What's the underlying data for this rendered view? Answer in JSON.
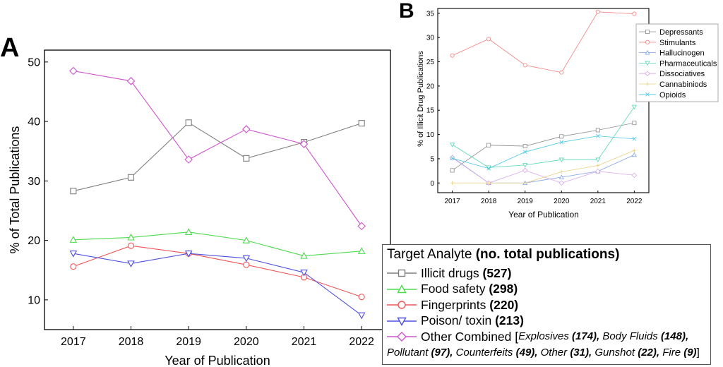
{
  "chart_data": [
    {
      "panel_label": "A",
      "type": "line",
      "xlabel": "Year of Publication",
      "ylabel": "% of Total Publications",
      "x": [
        2017,
        2018,
        2019,
        2020,
        2021,
        2022
      ],
      "xlim": [
        2016.5,
        2022.5
      ],
      "ylim": [
        5,
        52
      ],
      "yticks": [
        10,
        20,
        30,
        40,
        50
      ],
      "series": [
        {
          "name": "Illicit drugs",
          "count": "(527)",
          "color": "#7f7f7f",
          "marker": "square",
          "values": [
            28.3,
            30.6,
            39.8,
            33.8,
            36.5,
            39.7
          ]
        },
        {
          "name": "Food safety",
          "count": "(298)",
          "color": "#4ddb4d",
          "marker": "triangle-up",
          "values": [
            20.1,
            20.5,
            21.4,
            20.0,
            17.4,
            18.2
          ]
        },
        {
          "name": "Fingerprints",
          "count": "(220)",
          "color": "#f05555",
          "marker": "circle",
          "values": [
            15.6,
            19.1,
            17.8,
            15.9,
            13.8,
            10.5
          ]
        },
        {
          "name": "Poison/ toxin",
          "count": "(213)",
          "color": "#5050e0",
          "marker": "triangle-down",
          "values": [
            17.8,
            16.1,
            17.8,
            17.0,
            14.6,
            7.4
          ]
        },
        {
          "name": "Other Combined",
          "count": "",
          "color": "#cc55cc",
          "marker": "diamond",
          "values": [
            48.5,
            46.8,
            33.6,
            38.7,
            36.2,
            22.4
          ]
        }
      ],
      "legend": {
        "title": "Target Analyte",
        "title_bold": "(no. total publications)",
        "other_open": "[",
        "other_items_line1": [
          {
            "name": "Explosives",
            "count": "(174),"
          },
          {
            "name": "Body Fluids",
            "count": "(148),"
          }
        ],
        "other_items_line2": [
          {
            "name": "Pollutant",
            "count": "(97),"
          },
          {
            "name": "Counterfeits",
            "count": "(49),"
          },
          {
            "name": "Other",
            "count": "(31),"
          },
          {
            "name": "Gunshot",
            "count": "(22),"
          },
          {
            "name": "Fire",
            "count": "(9)"
          }
        ],
        "other_close": "]"
      }
    },
    {
      "panel_label": "B",
      "type": "line",
      "xlabel": "Year of Publication",
      "ylabel": "% of Illicit Drug Publications",
      "x": [
        2017,
        2018,
        2019,
        2020,
        2021,
        2022
      ],
      "xlim": [
        2016.6,
        2022.4
      ],
      "ylim": [
        -2,
        36
      ],
      "yticks": [
        0,
        5,
        10,
        15,
        20,
        25,
        30,
        35
      ],
      "series": [
        {
          "name": "Depressants",
          "color": "#8c8c8c",
          "marker": "square",
          "values": [
            2.6,
            7.8,
            7.6,
            9.6,
            10.9,
            12.4
          ]
        },
        {
          "name": "Stimulants",
          "color": "#f08080",
          "marker": "circle",
          "values": [
            26.3,
            29.7,
            24.3,
            22.8,
            35.3,
            34.9
          ]
        },
        {
          "name": "Hallucinogen",
          "color": "#7f9fe6",
          "marker": "triangle-up",
          "values": [
            5.3,
            0.0,
            0.0,
            1.2,
            2.4,
            5.8
          ]
        },
        {
          "name": "Pharmaceuticals",
          "color": "#55d6b4",
          "marker": "triangle-down",
          "values": [
            7.9,
            3.2,
            3.7,
            4.8,
            4.8,
            15.7
          ]
        },
        {
          "name": "Dissociatives",
          "color": "#d8a6ea",
          "marker": "diamond",
          "values": [
            5.2,
            0.0,
            2.6,
            0.0,
            2.4,
            1.6
          ]
        },
        {
          "name": "Cannabiniods",
          "color": "#e8d080",
          "marker": "plus",
          "values": [
            0.0,
            0.0,
            0.0,
            2.3,
            3.6,
            6.7
          ]
        },
        {
          "name": "Opioids",
          "color": "#4cc9e6",
          "marker": "x",
          "values": [
            5.1,
            3.0,
            6.4,
            8.4,
            9.7,
            9.1
          ]
        }
      ]
    }
  ]
}
